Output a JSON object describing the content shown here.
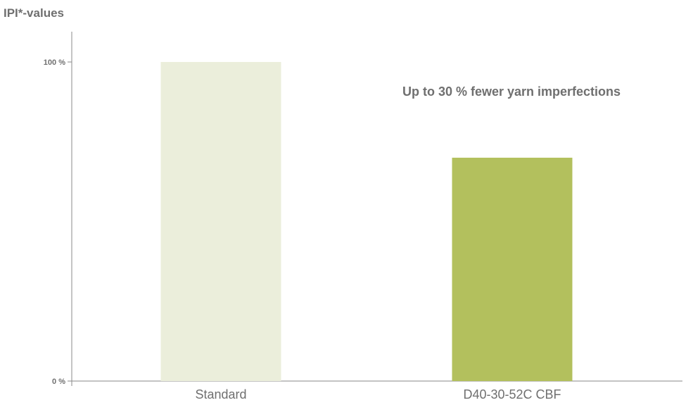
{
  "chart_data": {
    "type": "bar",
    "ylabel": "IPI*-values",
    "categories": [
      "Standard",
      "D40-30-52C CBF"
    ],
    "values": [
      100,
      70
    ],
    "ylim": [
      0,
      100
    ],
    "yticks": [
      {
        "value": 100,
        "label": "100 %"
      },
      {
        "value": 0,
        "label": "0 %"
      }
    ],
    "bar_colors": [
      "#ebeedb",
      "#b3c05d"
    ],
    "annotation": "Up to 30 % fewer yarn imperfections",
    "grid": false,
    "legend": "none"
  }
}
